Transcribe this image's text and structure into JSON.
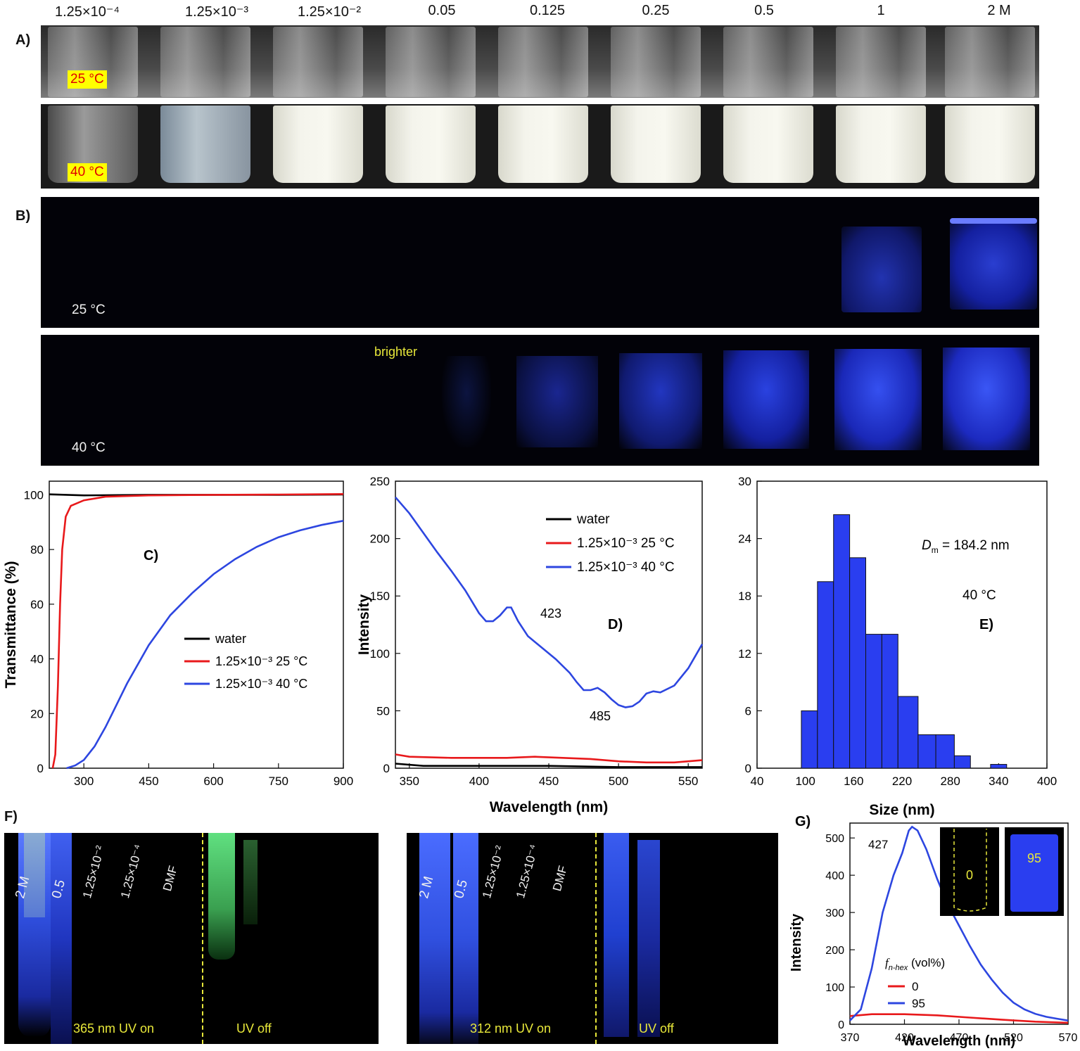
{
  "concentrations": [
    "1.25×10⁻⁴",
    "1.25×10⁻³",
    "1.25×10⁻²",
    "0.05",
    "0.125",
    "0.25",
    "0.5",
    "1",
    "2  M"
  ],
  "panelA": {
    "label": "A)",
    "temp_top": "25 °C",
    "temp_bottom": "40 °C"
  },
  "panelB": {
    "label": "B)",
    "temp_top": "25 °C",
    "temp_bottom": "40 °C",
    "annotation": "brighter"
  },
  "panelF": {
    "label": "F)",
    "left_caption_on": "365 nm UV on",
    "left_caption_off": "UV off",
    "right_caption_on": "312 nm UV on",
    "right_caption_off": "UV off",
    "vial_labels": [
      "2 M",
      "0.5",
      "1.25×10⁻²",
      "1.25×10⁻⁴",
      "DMF"
    ]
  },
  "colors": {
    "red": "#e8191b",
    "blue": "#2d46e0",
    "black": "#000000",
    "bar": "#2a3ef0",
    "yellow": "#ffff00"
  },
  "chart_data": [
    {
      "panel": "C)",
      "type": "line",
      "xlabel": "",
      "ylabel": "Transmittance (%)",
      "xlim": [
        220,
        900
      ],
      "ylim": [
        0,
        105
      ],
      "xticks": [
        300,
        450,
        600,
        750,
        900
      ],
      "yticks": [
        0,
        20,
        40,
        60,
        80,
        100
      ],
      "legend": [
        "water",
        "1.25×10⁻³ 25 °C",
        "1.25×10⁻³ 40 °C"
      ],
      "series": [
        {
          "name": "water",
          "color": "#000000",
          "points": [
            [
              220,
              100.2
            ],
            [
              300,
              99.8
            ],
            [
              450,
              100
            ],
            [
              600,
              100
            ],
            [
              750,
              100
            ],
            [
              900,
              100.1
            ]
          ]
        },
        {
          "name": "1.25×10⁻³ 25 °C",
          "color": "#e8191b",
          "points": [
            [
              228,
              0
            ],
            [
              234,
              5
            ],
            [
              240,
              30
            ],
            [
              245,
              60
            ],
            [
              250,
              80
            ],
            [
              258,
              92
            ],
            [
              270,
              96
            ],
            [
              300,
              98
            ],
            [
              350,
              99.3
            ],
            [
              450,
              99.8
            ],
            [
              600,
              100
            ],
            [
              750,
              100.1
            ],
            [
              900,
              100.3
            ]
          ]
        },
        {
          "name": "1.25×10⁻³ 40 °C",
          "color": "#2d46e0",
          "points": [
            [
              260,
              0
            ],
            [
              280,
              1
            ],
            [
              300,
              3
            ],
            [
              325,
              8
            ],
            [
              350,
              15
            ],
            [
              375,
              23
            ],
            [
              400,
              31
            ],
            [
              450,
              45
            ],
            [
              500,
              56
            ],
            [
              550,
              64
            ],
            [
              600,
              71
            ],
            [
              650,
              76.5
            ],
            [
              700,
              81
            ],
            [
              750,
              84.5
            ],
            [
              800,
              87
            ],
            [
              850,
              89
            ],
            [
              900,
              90.5
            ]
          ]
        }
      ]
    },
    {
      "panel": "D)",
      "type": "line",
      "xlabel": "Wavelength (nm)",
      "ylabel": "Intensity",
      "xlim": [
        340,
        560
      ],
      "ylim": [
        0,
        250
      ],
      "xticks": [
        350,
        400,
        450,
        500,
        550
      ],
      "yticks": [
        0,
        50,
        100,
        150,
        200,
        250
      ],
      "legend": [
        "water",
        "1.25×10⁻³ 25 °C",
        "1.25×10⁻³ 40 °C"
      ],
      "annotations": [
        "423",
        "485"
      ],
      "series": [
        {
          "name": "water",
          "color": "#000000",
          "points": [
            [
              340,
              4
            ],
            [
              360,
              2
            ],
            [
              400,
              2
            ],
            [
              450,
              2
            ],
            [
              500,
              1
            ],
            [
              560,
              1
            ]
          ]
        },
        {
          "name": "1.25×10⁻³ 25 °C",
          "color": "#e8191b",
          "points": [
            [
              340,
              12
            ],
            [
              350,
              10
            ],
            [
              380,
              9
            ],
            [
              420,
              9
            ],
            [
              440,
              10
            ],
            [
              460,
              9
            ],
            [
              480,
              8
            ],
            [
              500,
              6
            ],
            [
              520,
              5
            ],
            [
              540,
              5
            ],
            [
              560,
              7
            ]
          ]
        },
        {
          "name": "1.25×10⁻³ 40 °C",
          "color": "#2d46e0",
          "points": [
            [
              340,
              236
            ],
            [
              350,
              222
            ],
            [
              360,
              205
            ],
            [
              370,
              188
            ],
            [
              380,
              172
            ],
            [
              390,
              155
            ],
            [
              400,
              135
            ],
            [
              405,
              128
            ],
            [
              410,
              128
            ],
            [
              415,
              133
            ],
            [
              420,
              140
            ],
            [
              423,
              140
            ],
            [
              428,
              128
            ],
            [
              435,
              115
            ],
            [
              445,
              105
            ],
            [
              455,
              95
            ],
            [
              465,
              83
            ],
            [
              470,
              75
            ],
            [
              475,
              68
            ],
            [
              480,
              68
            ],
            [
              485,
              70
            ],
            [
              490,
              66
            ],
            [
              495,
              60
            ],
            [
              500,
              55
            ],
            [
              505,
              53
            ],
            [
              510,
              54
            ],
            [
              515,
              58
            ],
            [
              520,
              65
            ],
            [
              525,
              67
            ],
            [
              530,
              66
            ],
            [
              540,
              72
            ],
            [
              550,
              87
            ],
            [
              560,
              108
            ]
          ]
        }
      ]
    },
    {
      "panel": "E)",
      "type": "bar",
      "xlabel": "Size (nm)",
      "ylabel": "",
      "xlim": [
        40,
        400
      ],
      "ylim": [
        0,
        30
      ],
      "xticks": [
        40,
        100,
        160,
        220,
        280,
        340,
        400
      ],
      "yticks": [
        0,
        6,
        12,
        18,
        24,
        30
      ],
      "annotation_dm": "184.2 nm",
      "annotation_temp": "40 °C",
      "bins": [
        {
          "x0": 95,
          "x1": 115,
          "value": 6
        },
        {
          "x0": 115,
          "x1": 135,
          "value": 19.5
        },
        {
          "x0": 135,
          "x1": 155,
          "value": 26.5
        },
        {
          "x0": 155,
          "x1": 175,
          "value": 22
        },
        {
          "x0": 175,
          "x1": 195,
          "value": 14
        },
        {
          "x0": 195,
          "x1": 215,
          "value": 14
        },
        {
          "x0": 215,
          "x1": 240,
          "value": 7.5
        },
        {
          "x0": 240,
          "x1": 262,
          "value": 3.5
        },
        {
          "x0": 262,
          "x1": 285,
          "value": 3.5
        },
        {
          "x0": 285,
          "x1": 305,
          "value": 1.3
        },
        {
          "x0": 330,
          "x1": 350,
          "value": 0.4
        }
      ]
    },
    {
      "panel": "G)",
      "type": "line",
      "xlabel": "Wavelength (nm)",
      "ylabel": "Intensity",
      "xlim": [
        370,
        570
      ],
      "ylim": [
        0,
        540
      ],
      "xticks": [
        370,
        420,
        470,
        520,
        570
      ],
      "yticks": [
        0,
        100,
        200,
        300,
        400,
        500
      ],
      "legend_title": "(vol%)",
      "legend": [
        "0",
        "95"
      ],
      "annotation": "427",
      "inset_labels": [
        "0",
        "95"
      ],
      "series": [
        {
          "name": "0",
          "color": "#e8191b",
          "points": [
            [
              370,
              22
            ],
            [
              390,
              27
            ],
            [
              420,
              27
            ],
            [
              450,
              24
            ],
            [
              480,
              18
            ],
            [
              510,
              12
            ],
            [
              540,
              7
            ],
            [
              570,
              4
            ]
          ]
        },
        {
          "name": "95",
          "color": "#2d46e0",
          "points": [
            [
              370,
              10
            ],
            [
              380,
              40
            ],
            [
              390,
              150
            ],
            [
              400,
              300
            ],
            [
              410,
              400
            ],
            [
              418,
              460
            ],
            [
              424,
              520
            ],
            [
              427,
              530
            ],
            [
              432,
              520
            ],
            [
              440,
              470
            ],
            [
              450,
              390
            ],
            [
              460,
              320
            ],
            [
              470,
              265
            ],
            [
              480,
              210
            ],
            [
              490,
              160
            ],
            [
              500,
              120
            ],
            [
              510,
              85
            ],
            [
              520,
              58
            ],
            [
              530,
              40
            ],
            [
              540,
              28
            ],
            [
              550,
              20
            ],
            [
              560,
              15
            ],
            [
              570,
              10
            ]
          ]
        }
      ]
    }
  ]
}
